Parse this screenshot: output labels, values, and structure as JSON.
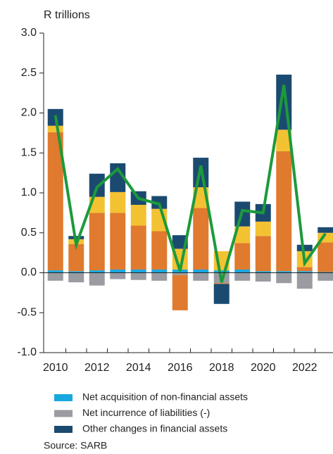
{
  "chart_data": {
    "type": "bar",
    "stacked": true,
    "axis_label": "R trillions",
    "source": "Source: SARB",
    "categories": [
      "2010",
      null,
      "2012",
      null,
      "2014",
      null,
      "2016",
      null,
      "2018",
      null,
      "2020",
      null,
      "2022",
      null
    ],
    "ylim": [
      -1.0,
      3.0
    ],
    "yticks": [
      {
        "value": 3.0,
        "label": "3.0"
      },
      {
        "value": 2.5,
        "label": "2.5"
      },
      {
        "value": 2.0,
        "label": "2.0"
      },
      {
        "value": 1.5,
        "label": "1.5"
      },
      {
        "value": 1.0,
        "label": "1.0"
      },
      {
        "value": 0.5,
        "label": "0.5"
      },
      {
        "value": 0.0,
        "label": "0.0"
      },
      {
        "value": -0.5,
        "label": "-0.5"
      },
      {
        "value": -1.0,
        "label": "-1.0"
      }
    ],
    "series": [
      {
        "name": "Net acquisition of non-financial assets",
        "color": "#19a7e0",
        "values": [
          0.03,
          0.02,
          0.03,
          0.04,
          0.04,
          0.04,
          0.04,
          0.04,
          0.03,
          0.04,
          0.02,
          0.02,
          0.02,
          0.01
        ]
      },
      {
        "name": "Net incurrence of liabilities (-)",
        "color": "#9b9ca1",
        "values": [
          -0.1,
          -0.12,
          -0.16,
          -0.08,
          -0.09,
          -0.1,
          -0.03,
          -0.1,
          -0.13,
          -0.1,
          -0.11,
          -0.13,
          -0.2,
          -0.1
        ]
      },
      {
        "color": "#e07a2e",
        "values": [
          1.73,
          0.34,
          0.72,
          0.71,
          0.55,
          0.48,
          -0.44,
          0.77,
          -0.01,
          0.33,
          0.44,
          1.5,
          0.05,
          0.37
        ]
      },
      {
        "color": "#f3c232",
        "values": [
          0.08,
          0.06,
          0.2,
          0.26,
          0.26,
          0.28,
          0.26,
          0.26,
          0.24,
          0.21,
          0.18,
          0.27,
          0.2,
          0.12
        ]
      },
      {
        "name": "Other changes in financial assets",
        "color": "#1b4a70",
        "values": [
          0.21,
          0.04,
          0.29,
          0.36,
          0.17,
          0.16,
          0.17,
          0.37,
          -0.25,
          0.31,
          0.22,
          0.69,
          0.08,
          0.07
        ]
      },
      {
        "type": "line",
        "color": "#1c9a3b",
        "values": [
          1.97,
          0.35,
          1.07,
          1.3,
          0.93,
          0.86,
          0.02,
          1.34,
          -0.12,
          0.78,
          0.75,
          2.35,
          0.12,
          0.49
        ]
      }
    ]
  }
}
